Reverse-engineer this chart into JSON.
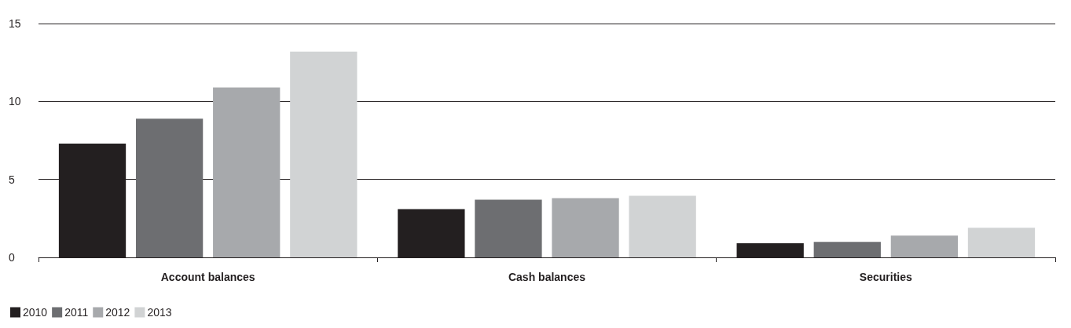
{
  "chart_data": {
    "type": "bar",
    "categories": [
      "Account balances",
      "Cash balances",
      "Securities"
    ],
    "series": [
      {
        "name": "2010",
        "color": "#231f20",
        "values": [
          7.3,
          3.1,
          0.9
        ]
      },
      {
        "name": "2011",
        "color": "#6d6e71",
        "values": [
          8.9,
          3.7,
          1.0
        ]
      },
      {
        "name": "2012",
        "color": "#a7a9ac",
        "values": [
          10.9,
          3.8,
          1.4
        ]
      },
      {
        "name": "2013",
        "color": "#d1d3d4",
        "values": [
          13.2,
          3.95,
          1.9
        ]
      }
    ],
    "ylim": [
      0,
      15
    ],
    "yticks": [
      0,
      5,
      10,
      15
    ],
    "grid": "y",
    "legend": "bottom left"
  }
}
